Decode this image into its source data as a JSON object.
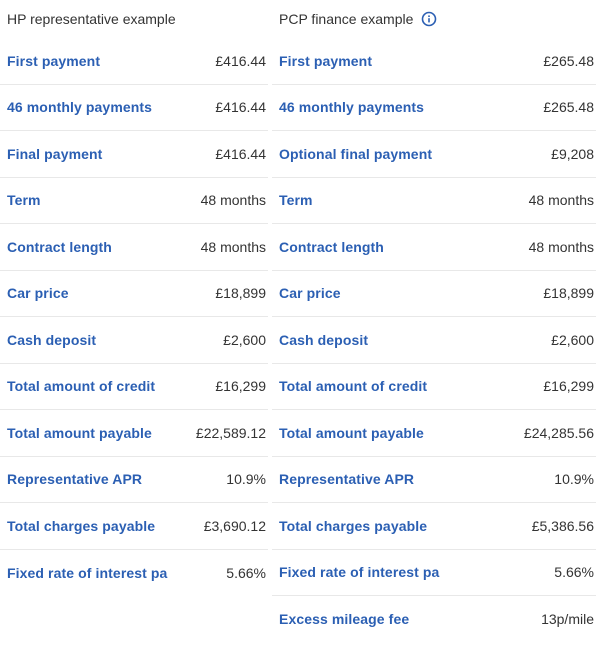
{
  "hp": {
    "title": "HP representative example",
    "rows": [
      {
        "label": "First payment",
        "value": "£416.44"
      },
      {
        "label": "46 monthly payments",
        "value": "£416.44"
      },
      {
        "label": "Final payment",
        "value": "£416.44"
      },
      {
        "label": "Term",
        "value": "48 months"
      },
      {
        "label": "Contract length",
        "value": "48 months"
      },
      {
        "label": "Car price",
        "value": "£18,899"
      },
      {
        "label": "Cash deposit",
        "value": "£2,600"
      },
      {
        "label": "Total amount of credit",
        "value": "£16,299"
      },
      {
        "label": "Total amount payable",
        "value": "£22,589.12"
      },
      {
        "label": "Representative APR",
        "value": "10.9%"
      },
      {
        "label": "Total charges payable",
        "value": "£3,690.12"
      },
      {
        "label": "Fixed rate of interest pa",
        "value": "5.66%"
      }
    ]
  },
  "pcp": {
    "title": "PCP finance example",
    "rows": [
      {
        "label": "First payment",
        "value": "£265.48"
      },
      {
        "label": "46 monthly payments",
        "value": "£265.48"
      },
      {
        "label": "Optional final payment",
        "value": "£9,208"
      },
      {
        "label": "Term",
        "value": "48 months"
      },
      {
        "label": "Contract length",
        "value": "48 months"
      },
      {
        "label": "Car price",
        "value": "£18,899"
      },
      {
        "label": "Cash deposit",
        "value": "£2,600"
      },
      {
        "label": "Total amount of credit",
        "value": "£16,299"
      },
      {
        "label": "Total amount payable",
        "value": "£24,285.56"
      },
      {
        "label": "Representative APR",
        "value": "10.9%"
      },
      {
        "label": "Total charges payable",
        "value": "£5,386.56"
      },
      {
        "label": "Fixed rate of interest pa",
        "value": "5.66%"
      },
      {
        "label": "Excess mileage fee",
        "value": "13p/mile"
      }
    ]
  },
  "colors": {
    "label": "#2b5fb3",
    "text": "#333333",
    "divider": "#e8e8e8"
  },
  "icons": {
    "pcp_info": "info-icon"
  }
}
